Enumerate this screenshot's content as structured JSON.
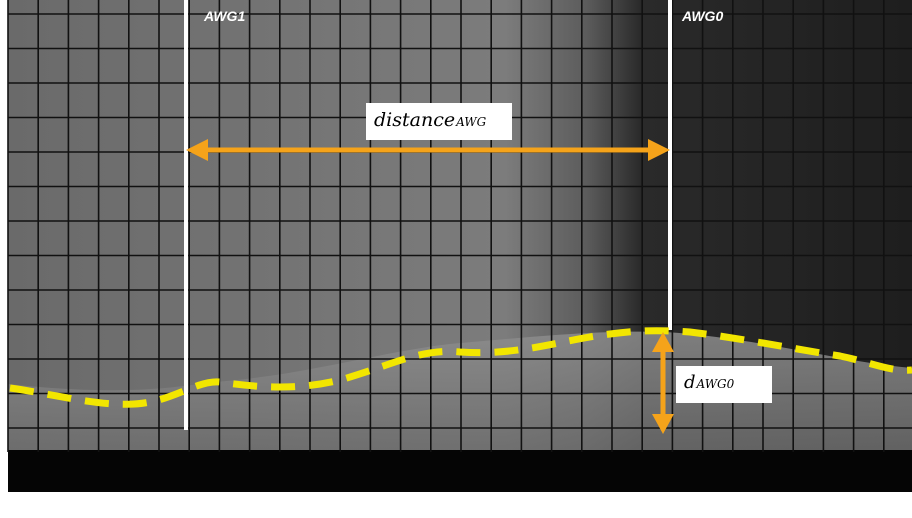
{
  "labels": {
    "gauge_left": "AWG1",
    "gauge_right": "AWG0",
    "distance_main": "distance",
    "distance_sub": "AWG",
    "depth_main": "d",
    "depth_sub": "AWG0"
  },
  "colors": {
    "arrow": "#f5a31a",
    "surface_trace": "#f2e600",
    "gauge_line": "#ffffff",
    "grid": "#111111"
  }
}
